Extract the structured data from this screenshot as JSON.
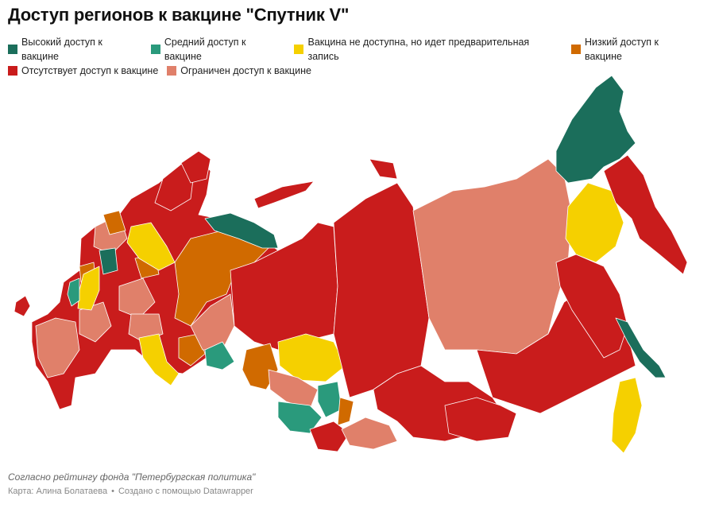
{
  "title": "Доступ регионов к вакцине \"Спутник V\"",
  "legend": [
    {
      "label": "Высокий доступ к вакцине",
      "color": "#1b6e5b"
    },
    {
      "label": "Средний доступ к вакцине",
      "color": "#2a9a7c"
    },
    {
      "label": "Вакцина не доступна, но идет предварительная запись",
      "color": "#f5d000"
    },
    {
      "label": "Низкий доступ к вакцине",
      "color": "#d06a00"
    },
    {
      "label": "Отсутствует доступ к вакцине",
      "color": "#c91c1c"
    },
    {
      "label": "Ограничен доступ к вакцине",
      "color": "#e0806a"
    }
  ],
  "note": "Согласно рейтингу фонда \"Петербургская политика\"",
  "credit": {
    "author": "Карта: Алина Болатаева",
    "separator": "•",
    "tool": "Создано с помощью Datawrapper"
  }
}
